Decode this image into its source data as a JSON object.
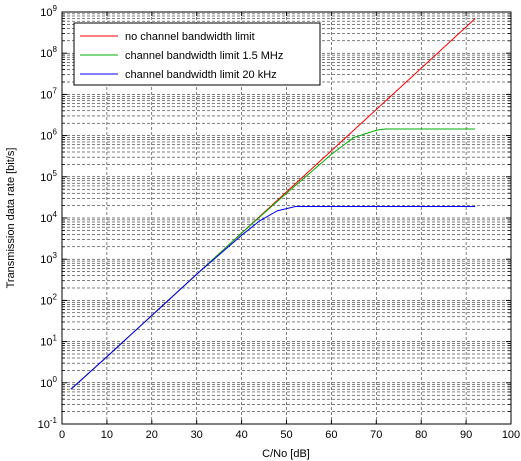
{
  "chart_data": {
    "type": "line",
    "xlabel": "C/No [dB]",
    "ylabel": "Transmission data rate [bit/s]",
    "xlim": [
      0,
      100
    ],
    "ylim_exp": [
      -1,
      9
    ],
    "y_scale": "log",
    "grid": true,
    "legend_position": "top-left",
    "x_ticks": [
      0,
      10,
      20,
      30,
      40,
      50,
      60,
      70,
      80,
      90,
      100
    ],
    "y_tick_exponents": [
      -1,
      0,
      1,
      2,
      3,
      4,
      5,
      6,
      7,
      8,
      9
    ],
    "series": [
      {
        "name": "no channel bandwidth limit",
        "color": "#ff0000",
        "x": [
          2,
          10,
          20,
          30,
          40,
          50,
          60,
          70,
          80,
          92
        ],
        "y": [
          0.7,
          4.3,
          43,
          430,
          4300,
          43000,
          430000,
          4300000,
          43000000,
          690000000
        ]
      },
      {
        "name": "channel bandwidth limit 1.5 MHz",
        "color": "#00b000",
        "x": [
          2,
          10,
          20,
          30,
          40,
          50,
          60,
          65,
          70,
          72,
          92
        ],
        "y": [
          0.7,
          4.3,
          43,
          430,
          4300,
          40000,
          350000,
          900000,
          1350000,
          1450000,
          1450000
        ]
      },
      {
        "name": "channel bandwidth limit 20 kHz",
        "color": "#0000ff",
        "x": [
          2,
          10,
          20,
          30,
          40,
          44,
          48,
          52,
          92
        ],
        "y": [
          0.7,
          4.3,
          43,
          430,
          3800,
          8500,
          15000,
          19000,
          19000
        ]
      }
    ]
  }
}
